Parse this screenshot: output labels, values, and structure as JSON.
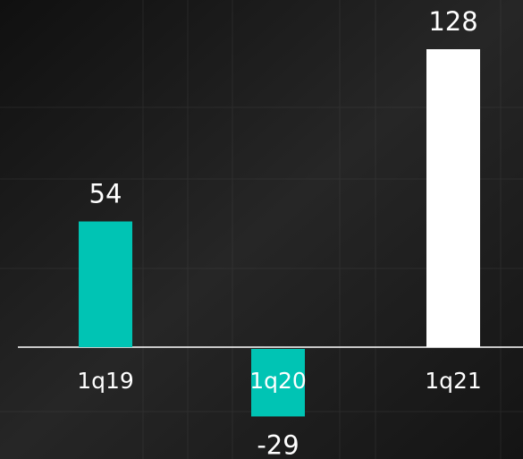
{
  "chart_data": {
    "type": "bar",
    "categories": [
      "1q19",
      "1q20",
      "1q21"
    ],
    "values": [
      54,
      -29,
      128
    ],
    "colors": [
      "#00c4b4",
      "#00c4b4",
      "#ffffff"
    ]
  }
}
